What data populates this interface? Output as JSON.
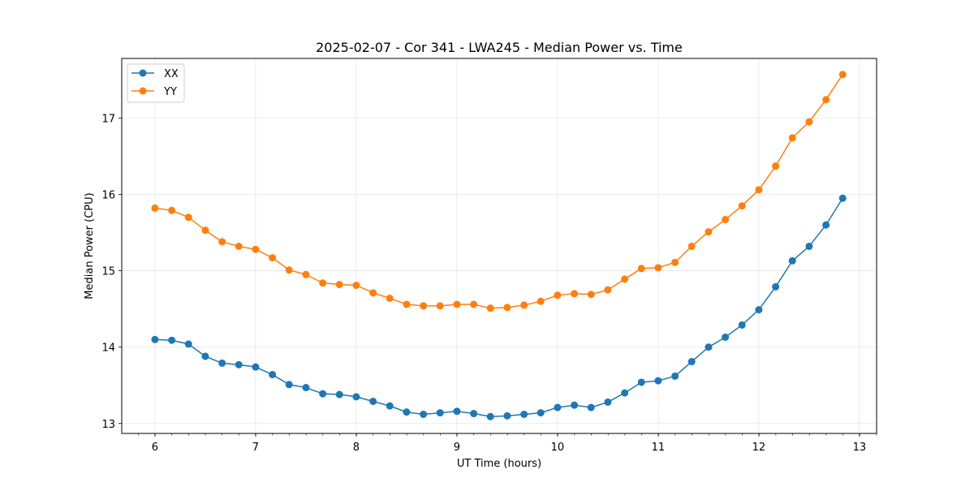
{
  "chart_data": {
    "type": "line",
    "title": "2025-02-07 - Cor 341 - LWA245 - Median Power vs. Time",
    "xlabel": "UT Time (hours)",
    "ylabel": "Median Power (CPU)",
    "xlim": [
      5.67,
      13.17
    ],
    "ylim": [
      12.87,
      17.78
    ],
    "xticks": [
      6,
      7,
      8,
      9,
      10,
      11,
      12,
      13
    ],
    "yticks": [
      13,
      14,
      15,
      16,
      17
    ],
    "x_minor_step": 0.1667,
    "grid": true,
    "legend_position": "top-left",
    "x": [
      6.0,
      6.167,
      6.333,
      6.5,
      6.667,
      6.833,
      7.0,
      7.167,
      7.333,
      7.5,
      7.667,
      7.833,
      8.0,
      8.167,
      8.333,
      8.5,
      8.667,
      8.833,
      9.0,
      9.167,
      9.333,
      9.5,
      9.667,
      9.833,
      10.0,
      10.167,
      10.333,
      10.5,
      10.667,
      10.833,
      11.0,
      11.167,
      11.333,
      11.5,
      11.667,
      11.833,
      12.0,
      12.167,
      12.333,
      12.5,
      12.667,
      12.833
    ],
    "series": [
      {
        "name": "XX",
        "color": "#1f77b4",
        "values": [
          14.1,
          14.09,
          14.04,
          13.88,
          13.79,
          13.77,
          13.74,
          13.64,
          13.51,
          13.47,
          13.39,
          13.38,
          13.35,
          13.29,
          13.23,
          13.15,
          13.12,
          13.14,
          13.16,
          13.13,
          13.09,
          13.1,
          13.12,
          13.14,
          13.21,
          13.24,
          13.21,
          13.28,
          13.4,
          13.54,
          13.56,
          13.62,
          13.81,
          14.0,
          14.13,
          14.29,
          14.49,
          14.79,
          15.13,
          15.32,
          15.6,
          15.95
        ]
      },
      {
        "name": "YY",
        "color": "#ff7f0e",
        "values": [
          15.82,
          15.79,
          15.7,
          15.53,
          15.38,
          15.32,
          15.28,
          15.17,
          15.01,
          14.95,
          14.84,
          14.82,
          14.81,
          14.71,
          14.64,
          14.56,
          14.54,
          14.54,
          14.56,
          14.56,
          14.51,
          14.52,
          14.55,
          14.6,
          14.68,
          14.7,
          14.69,
          14.75,
          14.89,
          15.03,
          15.04,
          15.11,
          15.32,
          15.51,
          15.67,
          15.85,
          16.06,
          16.37,
          16.74,
          16.95,
          17.24,
          17.57
        ]
      }
    ]
  }
}
